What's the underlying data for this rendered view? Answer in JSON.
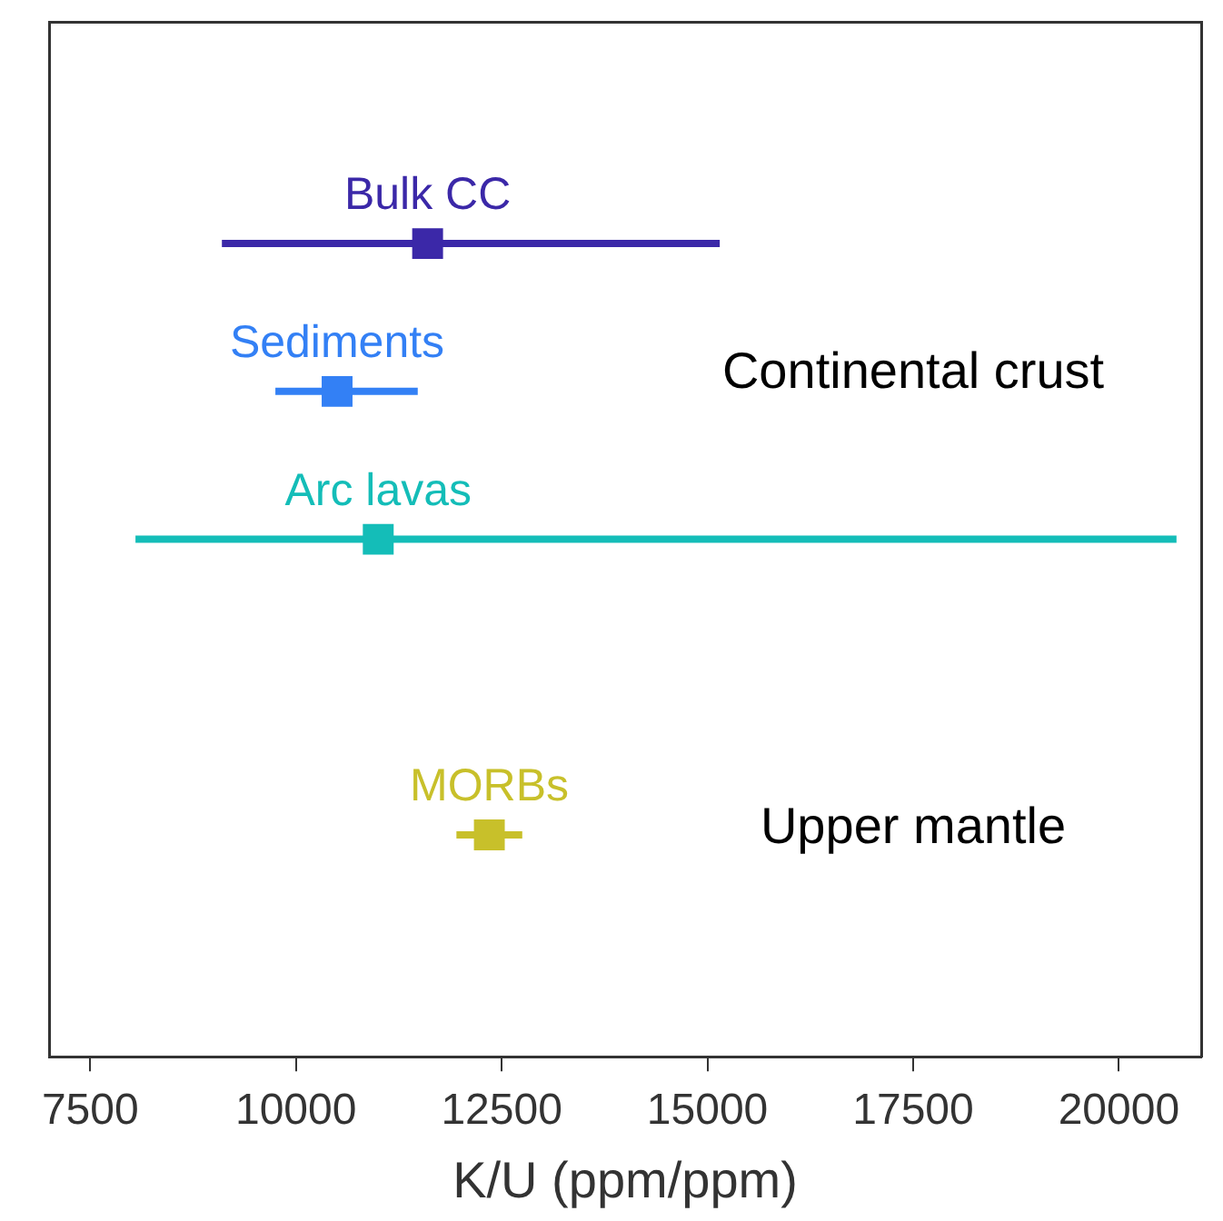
{
  "chart_data": {
    "type": "scatter",
    "orientation": "horizontal",
    "xlabel": "K/U (ppm/ppm)",
    "xlim": [
      7000,
      21000
    ],
    "xticks": [
      7500,
      10000,
      12500,
      15000,
      17500,
      20000
    ],
    "categories": [
      null,
      null,
      null,
      null,
      null,
      null,
      null
    ],
    "legend": false,
    "marker": "square",
    "series": [
      {
        "name": "Bulk CC",
        "color": "#3b28a8",
        "values": [
          null,
          11600,
          null,
          null,
          null,
          null,
          null
        ],
        "errors": [
          null,
          [
            9100,
            15150
          ],
          null,
          null,
          null,
          null,
          null
        ]
      },
      {
        "name": "Sediments",
        "color": "#3380f5",
        "values": [
          null,
          null,
          10500,
          null,
          null,
          null,
          null
        ],
        "errors": [
          null,
          null,
          [
            9750,
            11480
          ],
          null,
          null,
          null,
          null
        ]
      },
      {
        "name": "Arc lavas",
        "color": "#14bdb8",
        "values": [
          null,
          null,
          null,
          11000,
          null,
          null,
          null
        ],
        "errors": [
          null,
          null,
          null,
          [
            8050,
            20700
          ],
          null,
          null,
          null
        ]
      },
      {
        "name": "MORBs",
        "color": "#c8c02a",
        "values": [
          null,
          null,
          null,
          null,
          null,
          12350,
          null
        ],
        "errors": [
          null,
          null,
          null,
          null,
          null,
          [
            11950,
            12750
          ],
          null
        ]
      }
    ],
    "annotations": [
      "Continental crust",
      "Upper mantle"
    ]
  }
}
